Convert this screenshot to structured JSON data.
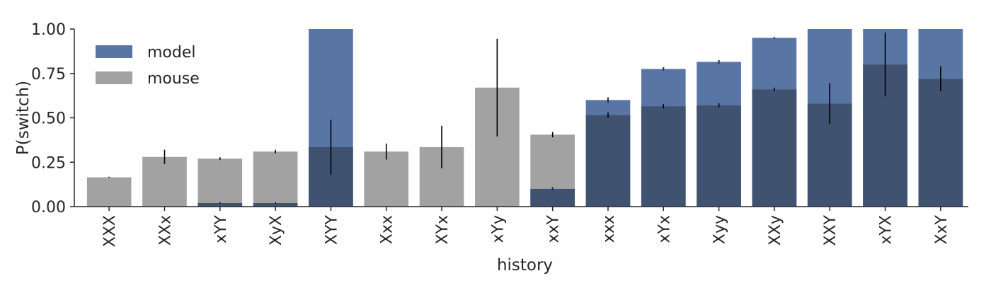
{
  "chart_data": {
    "type": "bar",
    "xlabel": "history",
    "ylabel": "P(switch)",
    "ylim": [
      0,
      1
    ],
    "yticks": [
      "0.00",
      "0.25",
      "0.50",
      "0.75",
      "1.00"
    ],
    "grid": false,
    "legend_position": "top-left",
    "categories": [
      "XXX",
      "XXx",
      "xYY",
      "XyX",
      "XYY",
      "Xxx",
      "XYx",
      "xYy",
      "xxY",
      "xxx",
      "xYx",
      "Xyy",
      "XXy",
      "XXY",
      "xYX",
      "XxY"
    ],
    "series": [
      {
        "name": "model",
        "color": "#5975a4",
        "values": [
          0.0,
          0.0,
          0.02,
          0.02,
          1.0,
          0.0,
          0.0,
          0.0,
          0.1,
          0.6,
          0.775,
          0.815,
          0.95,
          1.0,
          1.0,
          1.0
        ],
        "error": [
          0,
          0,
          0.005,
          0.005,
          0,
          0,
          0,
          0,
          0.01,
          0.015,
          0.01,
          0.01,
          0.005,
          0,
          0,
          0
        ]
      },
      {
        "name": "mouse",
        "color": "#a2a2a2",
        "values": [
          0.165,
          0.28,
          0.27,
          0.31,
          0.335,
          0.31,
          0.335,
          0.67,
          0.405,
          0.515,
          0.565,
          0.57,
          0.66,
          0.58,
          0.8,
          0.72
        ],
        "error": [
          0.003,
          0.04,
          0.008,
          0.01,
          0.155,
          0.045,
          0.12,
          0.275,
          0.015,
          0.015,
          0.012,
          0.012,
          0.01,
          0.115,
          0.18,
          0.07
        ]
      }
    ],
    "overlap_color": "#3f526f"
  }
}
